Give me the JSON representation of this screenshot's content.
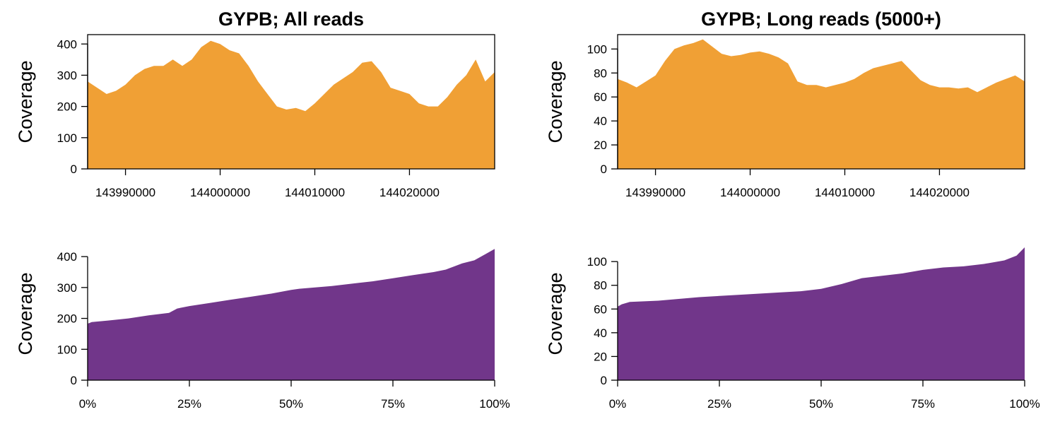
{
  "colors": {
    "coverage": "#F0A035",
    "cumulative": "#71368A"
  },
  "chart_data": [
    {
      "id": "p1",
      "type": "area",
      "title": "GYPB; All reads",
      "xlabel": "",
      "ylabel": "Coverage",
      "xlim": [
        143986000,
        144029000
      ],
      "ylim": [
        0,
        430
      ],
      "xticks": [
        143990000,
        144000000,
        144010000,
        144020000
      ],
      "xtick_labels": [
        "143990000",
        "144000000",
        "144010000",
        "144020000"
      ],
      "yticks": [
        0,
        100,
        200,
        300,
        400
      ],
      "x_axis_line": false,
      "color": "#F0A035",
      "x": [
        143986000,
        143987000,
        143988000,
        143989000,
        143990000,
        143991000,
        143992000,
        143993000,
        143994000,
        143995000,
        143996000,
        143997000,
        143998000,
        143999000,
        144000000,
        144001000,
        144002000,
        144003000,
        144004000,
        144005000,
        144006000,
        144007000,
        144008000,
        144009000,
        144010000,
        144011000,
        144012000,
        144013000,
        144014000,
        144015000,
        144016000,
        144017000,
        144018000,
        144019000,
        144020000,
        144021000,
        144022000,
        144023000,
        144024000,
        144025000,
        144026000,
        144027000,
        144028000,
        144029000
      ],
      "y": [
        280,
        260,
        240,
        250,
        270,
        300,
        320,
        330,
        330,
        350,
        330,
        350,
        390,
        410,
        400,
        380,
        370,
        330,
        280,
        240,
        200,
        190,
        195,
        185,
        210,
        240,
        270,
        290,
        310,
        340,
        345,
        310,
        260,
        250,
        240,
        210,
        200,
        200,
        230,
        270,
        300,
        350,
        280,
        310
      ]
    },
    {
      "id": "p2",
      "type": "area",
      "title": "GYPB; Long reads (5000+)",
      "xlabel": "",
      "ylabel": "Coverage",
      "xlim": [
        143986000,
        144029000
      ],
      "ylim": [
        0,
        112
      ],
      "xticks": [
        143990000,
        144000000,
        144010000,
        144020000
      ],
      "xtick_labels": [
        "143990000",
        "144000000",
        "144010000",
        "144020000"
      ],
      "yticks": [
        0,
        20,
        40,
        60,
        80,
        100
      ],
      "x_axis_line": false,
      "color": "#F0A035",
      "x": [
        143986000,
        143987000,
        143988000,
        143989000,
        143990000,
        143991000,
        143992000,
        143993000,
        143994000,
        143995000,
        143996000,
        143997000,
        143998000,
        143999000,
        144000000,
        144001000,
        144002000,
        144003000,
        144004000,
        144005000,
        144006000,
        144007000,
        144008000,
        144009000,
        144010000,
        144011000,
        144012000,
        144013000,
        144014000,
        144015000,
        144016000,
        144017000,
        144018000,
        144019000,
        144020000,
        144021000,
        144022000,
        144023000,
        144024000,
        144025000,
        144026000,
        144027000,
        144028000,
        144029000
      ],
      "y": [
        75,
        72,
        68,
        73,
        78,
        90,
        100,
        103,
        105,
        108,
        102,
        96,
        94,
        95,
        97,
        98,
        96,
        93,
        88,
        73,
        70,
        70,
        68,
        70,
        72,
        75,
        80,
        84,
        86,
        88,
        90,
        82,
        74,
        70,
        68,
        68,
        67,
        68,
        64,
        68,
        72,
        75,
        78,
        73
      ]
    },
    {
      "id": "p3",
      "type": "area",
      "title": "",
      "xlabel": "",
      "ylabel": "Coverage",
      "xlim": [
        0,
        100
      ],
      "ylim": [
        0,
        430
      ],
      "xticks": [
        0,
        25,
        50,
        75,
        100
      ],
      "xtick_labels": [
        "0%",
        "25%",
        "50%",
        "75%",
        "100%"
      ],
      "yticks": [
        0,
        100,
        200,
        300,
        400
      ],
      "x_axis_line": true,
      "color": "#71368A",
      "x": [
        0,
        1,
        5,
        10,
        15,
        20,
        22,
        25,
        30,
        35,
        40,
        45,
        50,
        52,
        60,
        70,
        75,
        80,
        85,
        88,
        90,
        92,
        95,
        98,
        100
      ],
      "y": [
        183,
        188,
        193,
        200,
        210,
        218,
        232,
        240,
        250,
        260,
        270,
        280,
        292,
        296,
        305,
        320,
        330,
        340,
        350,
        358,
        368,
        378,
        388,
        410,
        425
      ]
    },
    {
      "id": "p4",
      "type": "area",
      "title": "",
      "xlabel": "",
      "ylabel": "Coverage",
      "xlim": [
        0,
        100
      ],
      "ylim": [
        0,
        112
      ],
      "xticks": [
        0,
        25,
        50,
        75,
        100
      ],
      "xtick_labels": [
        "0%",
        "25%",
        "50%",
        "75%",
        "100%"
      ],
      "yticks": [
        0,
        20,
        40,
        60,
        80,
        100
      ],
      "x_axis_line": true,
      "color": "#71368A",
      "x": [
        0,
        1,
        3,
        10,
        20,
        30,
        40,
        45,
        50,
        55,
        60,
        65,
        70,
        75,
        80,
        85,
        90,
        95,
        98,
        100
      ],
      "y": [
        62,
        64,
        66,
        67,
        70,
        72,
        74,
        75,
        77,
        81,
        86,
        88,
        90,
        93,
        95,
        96,
        98,
        101,
        105,
        112
      ]
    }
  ]
}
